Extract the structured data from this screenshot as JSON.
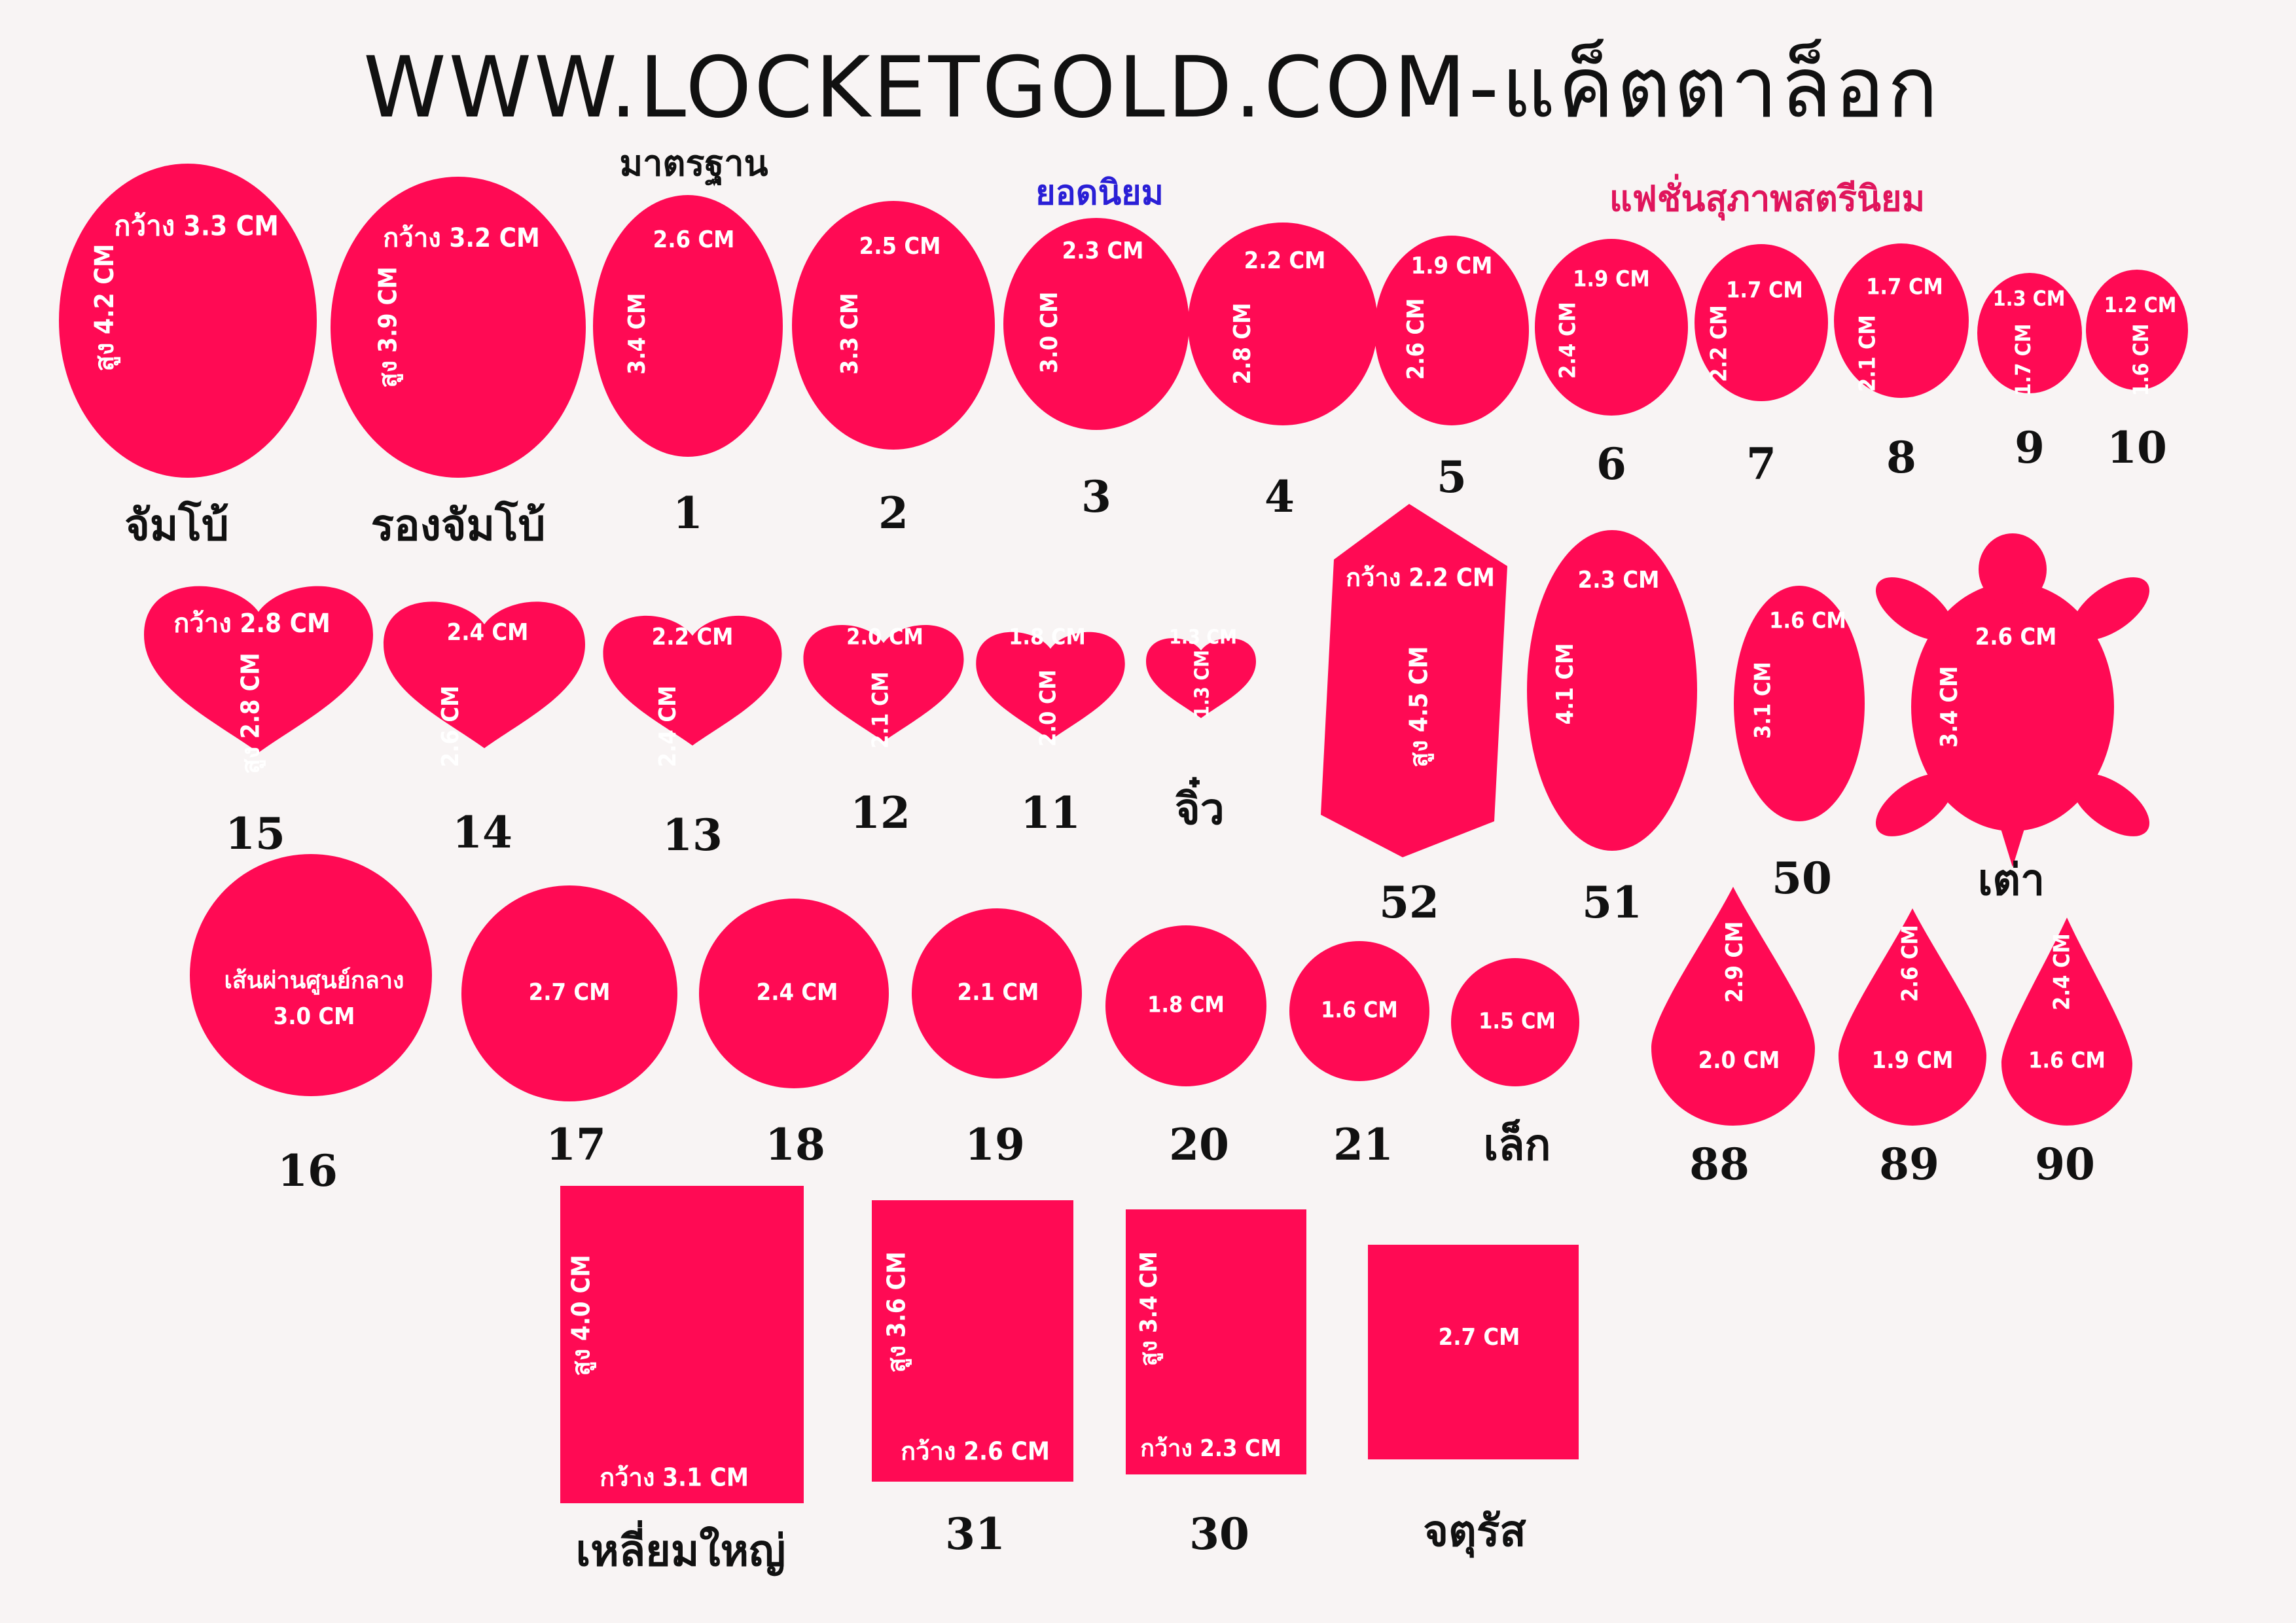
{
  "title": "WWW.LOCKETGOLD.COM-แค็ตตาล็อก",
  "section_labels": {
    "standard": "มาตรฐาน",
    "popular": "ยอดนิยม",
    "fashion": "แฟชั่นสุภาพสตรีนิยม"
  },
  "colors": {
    "shape_fill": "#ff0a54",
    "text_on_shape": "#ffffff",
    "label": "#111111",
    "popular_label": "#2a1fd6",
    "fashion_label": "#e0155c",
    "background": "#f8f4f4"
  },
  "items": [
    {
      "id": "jumbo",
      "shape": "oval",
      "width": "กว้าง 3.3 CM",
      "height": "สูง 4.2 CM",
      "label": "จัมโบ้"
    },
    {
      "id": "rong-jumbo",
      "shape": "oval",
      "width": "กว้าง 3.2 CM",
      "height": "สูง 3.9 CM",
      "label": "รองจัมโบ้"
    },
    {
      "id": "oval-1",
      "shape": "oval",
      "width": "2.6 CM",
      "height": "3.4 CM",
      "label": "1"
    },
    {
      "id": "oval-2",
      "shape": "oval",
      "width": "2.5 CM",
      "height": "3.3 CM",
      "label": "2"
    },
    {
      "id": "oval-3",
      "shape": "oval",
      "width": "2.3 CM",
      "height": "3.0 CM",
      "label": "3"
    },
    {
      "id": "oval-4",
      "shape": "oval",
      "width": "2.2 CM",
      "height": "2.8 CM",
      "label": "4"
    },
    {
      "id": "oval-5",
      "shape": "oval",
      "width": "1.9 CM",
      "height": "2.6 CM",
      "label": "5"
    },
    {
      "id": "oval-6",
      "shape": "oval",
      "width": "1.9 CM",
      "height": "2.4 CM",
      "label": "6"
    },
    {
      "id": "oval-7",
      "shape": "oval",
      "width": "1.7 CM",
      "height": "2.2 CM",
      "label": "7"
    },
    {
      "id": "oval-8",
      "shape": "oval",
      "width": "1.7 CM",
      "height": "2.1 CM",
      "label": "8"
    },
    {
      "id": "oval-9",
      "shape": "oval",
      "width": "1.3 CM",
      "height": "1.7 CM",
      "label": "9"
    },
    {
      "id": "oval-10",
      "shape": "oval",
      "width": "1.2 CM",
      "height": "1.6 CM",
      "label": "10"
    },
    {
      "id": "heart-15",
      "shape": "heart",
      "width": "กว้าง 2.8 CM",
      "height": "สูง 2.8 CM",
      "label": "15"
    },
    {
      "id": "heart-14",
      "shape": "heart",
      "width": "2.4 CM",
      "height": "2.6 CM",
      "label": "14"
    },
    {
      "id": "heart-13",
      "shape": "heart",
      "width": "2.2 CM",
      "height": "2.4 CM",
      "label": "13"
    },
    {
      "id": "heart-12",
      "shape": "heart",
      "width": "2.0 CM",
      "height": "2.1 CM",
      "label": "12"
    },
    {
      "id": "heart-11",
      "shape": "heart",
      "width": "1.8 CM",
      "height": "2.0 CM",
      "label": "11"
    },
    {
      "id": "heart-jiw",
      "shape": "heart",
      "width": "1.3 CM",
      "height": "1.3 CM",
      "label": "จิ๋ว"
    },
    {
      "id": "hex-52",
      "shape": "hexagon",
      "width": "กว้าง 2.2 CM",
      "height": "สูง 4.5 CM",
      "label": "52"
    },
    {
      "id": "oval-51",
      "shape": "oval",
      "width": "2.3 CM",
      "height": "4.1 CM",
      "label": "51"
    },
    {
      "id": "oval-50",
      "shape": "oval",
      "width": "1.6 CM",
      "height": "3.1 CM",
      "label": "50"
    },
    {
      "id": "turtle",
      "shape": "turtle",
      "width": "2.6 CM",
      "height": "3.4 CM",
      "label": "เต่า"
    },
    {
      "id": "circle-16",
      "shape": "circle",
      "width": "เส้นผ่านศูนย์กลาง",
      "height": "3.0 CM",
      "label": "16"
    },
    {
      "id": "circle-17",
      "shape": "circle",
      "width": "2.7 CM",
      "label": "17"
    },
    {
      "id": "circle-18",
      "shape": "circle",
      "width": "2.4 CM",
      "label": "18"
    },
    {
      "id": "circle-19",
      "shape": "circle",
      "width": "2.1 CM",
      "label": "19"
    },
    {
      "id": "circle-20",
      "shape": "circle",
      "width": "1.8 CM",
      "label": "20"
    },
    {
      "id": "circle-21",
      "shape": "circle",
      "width": "1.6 CM",
      "label": "21"
    },
    {
      "id": "circle-lek",
      "shape": "circle",
      "width": "1.5 CM",
      "label": "เล็ก"
    },
    {
      "id": "drop-88",
      "shape": "teardrop",
      "width": "2.0 CM",
      "height": "2.9 CM",
      "label": "88"
    },
    {
      "id": "drop-89",
      "shape": "teardrop",
      "width": "1.9 CM",
      "height": "2.6 CM",
      "label": "89"
    },
    {
      "id": "drop-90",
      "shape": "teardrop",
      "width": "1.6 CM",
      "height": "2.4 CM",
      "label": "90"
    },
    {
      "id": "rect-big",
      "shape": "rect",
      "width": "กว้าง 3.1 CM",
      "height": "สูง 4.0 CM",
      "label": "เหลี่ยมใหญ่"
    },
    {
      "id": "rect-31",
      "shape": "rect",
      "width": "กว้าง 2.6 CM",
      "height": "สูง 3.6 CM",
      "label": "31"
    },
    {
      "id": "rect-30",
      "shape": "rect",
      "width": "กว้าง 2.3 CM",
      "height": "สูง 3.4 CM",
      "label": "30"
    },
    {
      "id": "square",
      "shape": "square",
      "width": "2.7 CM",
      "label": "จตุรัส"
    }
  ]
}
